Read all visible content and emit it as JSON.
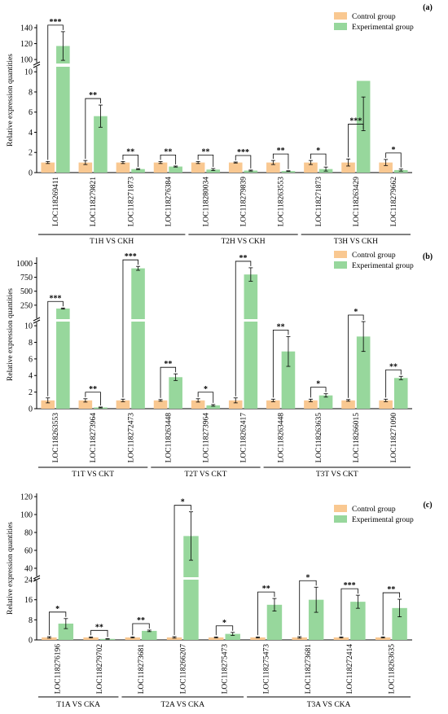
{
  "legend": {
    "control": "Control group",
    "experimental": "Experimental group"
  },
  "colors": {
    "control": "#F9C891",
    "experimental": "#97D79C",
    "line": "#000000"
  },
  "chart_data": [
    {
      "type": "bar",
      "panel": "(a)",
      "ylabel": "Relative expression quantities",
      "categories": [
        "LOC118269411",
        "LOC118279821",
        "LOC118271873",
        "LOC118276384",
        "LOC118280034",
        "LOC118279839",
        "LOC118263553",
        "LOC118271873",
        "LOC118263429",
        "LOC118279662"
      ],
      "groups": [
        {
          "label": "T1H VS CKH",
          "from": 0,
          "to": 3
        },
        {
          "label": "T2H VS CKH",
          "from": 4,
          "to": 6
        },
        {
          "label": "T3H VS CKH",
          "from": 7,
          "to": 9
        }
      ],
      "series": [
        {
          "name": "Control group",
          "values": [
            1,
            1,
            1,
            1,
            1,
            1,
            1,
            1,
            1,
            1
          ],
          "errors": [
            0.1,
            0.2,
            0.1,
            0.1,
            0.1,
            0.05,
            0.2,
            0.2,
            0.35,
            0.3
          ]
        },
        {
          "name": "Experimental group",
          "values": [
            117,
            5.6,
            0.35,
            0.6,
            0.3,
            0.2,
            0.15,
            0.35,
            9.1,
            0.25
          ],
          "errors": [
            18,
            1.1,
            0.05,
            0.05,
            0.1,
            0.05,
            0.03,
            0.2,
            1.6,
            0.1
          ]
        }
      ],
      "significance": [
        "***",
        "**",
        "**",
        "**",
        "**",
        "***",
        "**",
        "*",
        "***",
        "*"
      ],
      "y_axis": {
        "lower": {
          "min": 0,
          "max": 10.5,
          "ticks": [
            0,
            2,
            4,
            6,
            8,
            10
          ]
        },
        "upper": {
          "min": 95,
          "max": 140,
          "ticks": [
            100,
            120,
            140
          ]
        }
      }
    },
    {
      "type": "bar",
      "panel": "(b)",
      "ylabel": "Relative expression quantities",
      "categories": [
        "LOC118263553",
        "LOC118273964",
        "LOC118272473",
        "LOC118263448",
        "LOC118273964",
        "LOC118262417",
        "LOC118263448",
        "LOC118263635",
        "LOC118266015",
        "LOC118271090"
      ],
      "groups": [
        {
          "label": "T1T VS CKT",
          "from": 0,
          "to": 2
        },
        {
          "label": "T2T VS CKT",
          "from": 3,
          "to": 5
        },
        {
          "label": "T3T VS CKT",
          "from": 6,
          "to": 9
        }
      ],
      "series": [
        {
          "name": "Control group",
          "values": [
            1,
            1,
            1,
            1,
            1,
            1,
            1,
            1,
            1,
            1
          ],
          "errors": [
            0.3,
            0.2,
            0.15,
            0.1,
            0.2,
            0.3,
            0.15,
            0.15,
            0.1,
            0.15
          ]
        },
        {
          "name": "Experimental group",
          "values": [
            190,
            0.15,
            910,
            3.8,
            0.4,
            800,
            6.9,
            1.6,
            8.7,
            3.7
          ],
          "errors": [
            10,
            0.05,
            35,
            0.4,
            0.1,
            120,
            1.8,
            0.2,
            1.8,
            0.2
          ]
        }
      ],
      "significance": [
        "***",
        "**",
        "***",
        "**",
        "*",
        "**",
        "**",
        "*",
        "*",
        "**"
      ],
      "y_axis": {
        "lower": {
          "min": 0,
          "max": 10.5,
          "ticks": [
            0,
            2,
            4,
            6,
            8,
            10
          ]
        },
        "upper": {
          "min": 0,
          "max": 1050,
          "ticks": [
            0,
            250,
            500,
            750,
            1000
          ]
        }
      }
    },
    {
      "type": "bar",
      "panel": "(c)",
      "ylabel": "Relative expression quantities",
      "categories": [
        "LOC118276196",
        "LOC118279702",
        "LOC118273681",
        "LOC118266207",
        "LOC118275473",
        "LOC118275473",
        "LOC118273681",
        "LOC118272414",
        "LOC118263635"
      ],
      "groups": [
        {
          "label": "T1A VS CKA",
          "from": 0,
          "to": 1
        },
        {
          "label": "T2A VS CKA",
          "from": 2,
          "to": 4
        },
        {
          "label": "T3A VS CKA",
          "from": 5,
          "to": 8
        }
      ],
      "series": [
        {
          "name": "Control group",
          "values": [
            1,
            1,
            1,
            1,
            1,
            1,
            1,
            1,
            1
          ],
          "errors": [
            0.3,
            0.2,
            0.2,
            0.3,
            0.2,
            0.2,
            0.3,
            0.2,
            0.2
          ]
        },
        {
          "name": "Experimental group",
          "values": [
            6.5,
            0.4,
            3.6,
            76,
            2.4,
            14,
            16,
            15.2,
            12.7
          ],
          "errors": [
            2,
            0.1,
            0.3,
            27,
            0.6,
            2.5,
            5,
            2.6,
            3.5
          ]
        }
      ],
      "significance": [
        "*",
        "**",
        "**",
        "*",
        "*",
        "**",
        "*",
        "***",
        "**"
      ],
      "y_axis": {
        "lower": {
          "min": 0,
          "max": 24,
          "ticks": [
            0,
            8,
            16,
            24
          ]
        },
        "upper": {
          "min": 30,
          "max": 120,
          "ticks": [
            40,
            60,
            80,
            100,
            120
          ]
        }
      }
    }
  ]
}
